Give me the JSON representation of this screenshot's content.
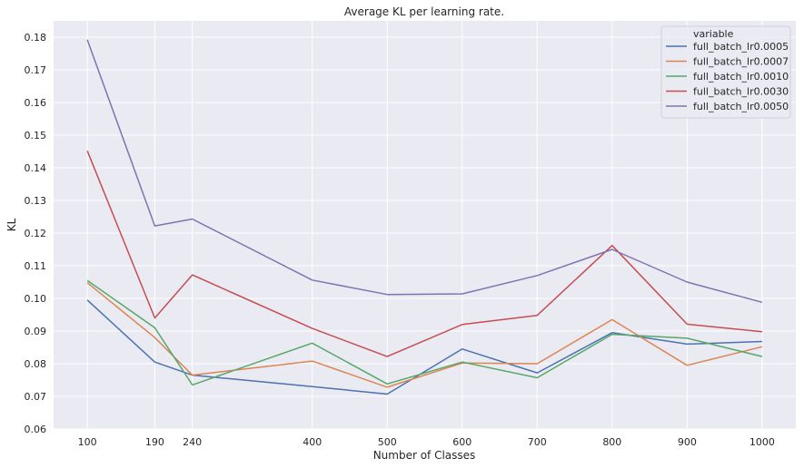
{
  "chart_data": {
    "type": "line",
    "title": "Average KL per learning rate.",
    "xlabel": "Number of Classes",
    "ylabel": "KL",
    "x": [
      100,
      190,
      240,
      400,
      500,
      600,
      700,
      800,
      900,
      1000
    ],
    "xlim": [
      55,
      1045
    ],
    "ylim": [
      0.06,
      0.185
    ],
    "yticks": [
      0.06,
      0.07,
      0.08,
      0.09,
      0.1,
      0.11,
      0.12,
      0.13,
      0.14,
      0.15,
      0.16,
      0.17,
      0.18
    ],
    "ytick_labels": [
      "0.06",
      "0.07",
      "0.08",
      "0.09",
      "0.10",
      "0.11",
      "0.12",
      "0.13",
      "0.14",
      "0.15",
      "0.16",
      "0.17",
      "0.18"
    ],
    "xtick_labels": [
      "100",
      "190",
      "240",
      "400",
      "500",
      "600",
      "700",
      "800",
      "900",
      "1000"
    ],
    "grid": true,
    "legend_title": "variable",
    "legend_position": "top-right",
    "series": [
      {
        "name": "full_batch_lr0.0005",
        "color": "#4c72b0",
        "values": [
          0.0995,
          0.0805,
          0.0765,
          0.073,
          0.0707,
          0.0845,
          0.0772,
          0.0895,
          0.086,
          0.0868
        ]
      },
      {
        "name": "full_batch_lr0.0007",
        "color": "#dd8452",
        "values": [
          0.1048,
          0.088,
          0.0765,
          0.0808,
          0.0728,
          0.0802,
          0.08,
          0.0935,
          0.0795,
          0.0852
        ]
      },
      {
        "name": "full_batch_lr0.0010",
        "color": "#55a868",
        "values": [
          0.1055,
          0.091,
          0.0735,
          0.0863,
          0.0738,
          0.0805,
          0.0757,
          0.089,
          0.0878,
          0.0822
        ]
      },
      {
        "name": "full_batch_lr0.0030",
        "color": "#c44e52",
        "values": [
          0.1452,
          0.094,
          0.1072,
          0.0908,
          0.0822,
          0.092,
          0.0948,
          0.1162,
          0.0921,
          0.0898
        ]
      },
      {
        "name": "full_batch_lr0.0050",
        "color": "#8172b3",
        "values": [
          0.1792,
          0.1222,
          0.1243,
          0.1056,
          0.1012,
          0.1014,
          0.107,
          0.115,
          0.105,
          0.0988
        ]
      }
    ]
  }
}
